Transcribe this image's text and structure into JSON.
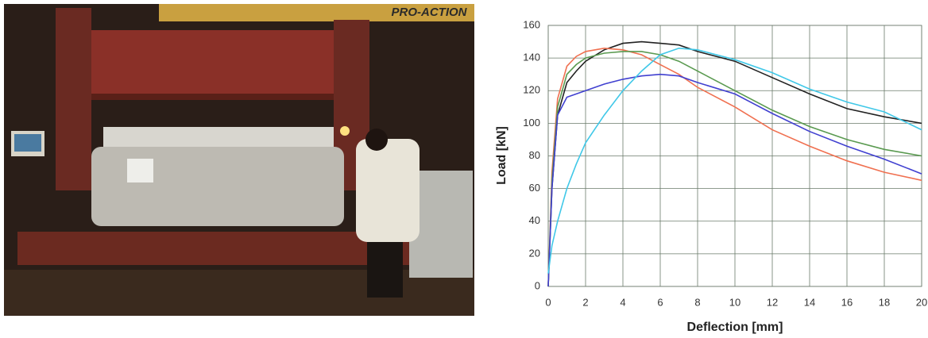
{
  "photo": {
    "sign": "PRO-ACTION"
  },
  "chart_data": {
    "type": "line",
    "x_label": "Deflection [mm]",
    "y_label": "Load [kN]",
    "x": [
      0,
      0.2,
      0.5,
      1,
      1.5,
      2,
      3,
      4,
      5,
      6,
      7,
      8,
      10,
      12,
      14,
      16,
      18,
      20
    ],
    "series": [
      {
        "color": "#222222",
        "values": [
          0,
          60,
          105,
          125,
          132,
          138,
          145,
          149,
          150,
          149,
          148,
          144,
          138,
          128,
          118,
          109,
          104,
          100
        ]
      },
      {
        "color": "#f07050",
        "values": [
          0,
          70,
          115,
          135,
          141,
          144,
          146,
          145,
          142,
          136,
          130,
          122,
          110,
          96,
          86,
          77,
          70,
          65
        ]
      },
      {
        "color": "#5a9a50",
        "values": [
          0,
          65,
          110,
          130,
          136,
          140,
          143,
          144,
          144,
          142,
          138,
          132,
          120,
          108,
          98,
          90,
          84,
          80
        ]
      },
      {
        "color": "#4040d0",
        "values": [
          0,
          60,
          105,
          116,
          118,
          120,
          124,
          127,
          129,
          130,
          129,
          125,
          118,
          106,
          95,
          86,
          78,
          69
        ]
      },
      {
        "color": "#40c8e8",
        "values": [
          8,
          25,
          40,
          60,
          75,
          88,
          105,
          120,
          132,
          142,
          146,
          145,
          139,
          131,
          121,
          113,
          107,
          96
        ]
      }
    ],
    "xlim": [
      0,
      20
    ],
    "xticks": [
      0,
      2,
      4,
      6,
      8,
      10,
      12,
      14,
      16,
      18,
      20
    ],
    "ylim": [
      0,
      160
    ],
    "yticks": [
      0,
      20,
      40,
      60,
      80,
      100,
      120,
      140,
      160
    ],
    "grid": true
  }
}
